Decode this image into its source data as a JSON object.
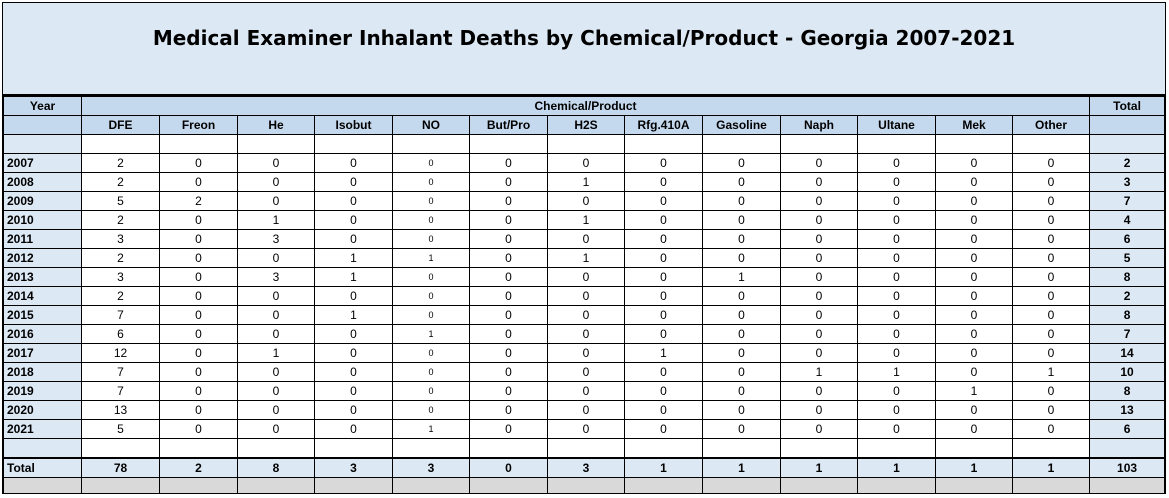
{
  "title": "Medical Examiner Inhalant Deaths by Chemical/Product - Georgia 2007-2021",
  "headers": {
    "year": "Year",
    "group": "Chemical/Product",
    "total": "Total"
  },
  "columns": [
    "DFE",
    "Freon",
    "He",
    "Isobut",
    "NO",
    "But/Pro",
    "H2S",
    "Rfg.410A",
    "Gasoline",
    "Naph",
    "Ultane",
    "Mek",
    "Other"
  ],
  "rows": [
    {
      "year": "2007",
      "values": [
        "2",
        "0",
        "0",
        "0",
        "0",
        "0",
        "0",
        "0",
        "0",
        "0",
        "0",
        "0",
        "0"
      ],
      "total": "2"
    },
    {
      "year": "2008",
      "values": [
        "2",
        "0",
        "0",
        "0",
        "0",
        "0",
        "1",
        "0",
        "0",
        "0",
        "0",
        "0",
        "0"
      ],
      "total": "3"
    },
    {
      "year": "2009",
      "values": [
        "5",
        "2",
        "0",
        "0",
        "0",
        "0",
        "0",
        "0",
        "0",
        "0",
        "0",
        "0",
        "0"
      ],
      "total": "7"
    },
    {
      "year": "2010",
      "values": [
        "2",
        "0",
        "1",
        "0",
        "0",
        "0",
        "1",
        "0",
        "0",
        "0",
        "0",
        "0",
        "0"
      ],
      "total": "4"
    },
    {
      "year": "2011",
      "values": [
        "3",
        "0",
        "3",
        "0",
        "0",
        "0",
        "0",
        "0",
        "0",
        "0",
        "0",
        "0",
        "0"
      ],
      "total": "6"
    },
    {
      "year": "2012",
      "values": [
        "2",
        "0",
        "0",
        "1",
        "1",
        "0",
        "1",
        "0",
        "0",
        "0",
        "0",
        "0",
        "0"
      ],
      "total": "5"
    },
    {
      "year": "2013",
      "values": [
        "3",
        "0",
        "3",
        "1",
        "0",
        "0",
        "0",
        "0",
        "1",
        "0",
        "0",
        "0",
        "0"
      ],
      "total": "8"
    },
    {
      "year": "2014",
      "values": [
        "2",
        "0",
        "0",
        "0",
        "0",
        "0",
        "0",
        "0",
        "0",
        "0",
        "0",
        "0",
        "0"
      ],
      "total": "2"
    },
    {
      "year": "2015",
      "values": [
        "7",
        "0",
        "0",
        "1",
        "0",
        "0",
        "0",
        "0",
        "0",
        "0",
        "0",
        "0",
        "0"
      ],
      "total": "8"
    },
    {
      "year": "2016",
      "values": [
        "6",
        "0",
        "0",
        "0",
        "1",
        "0",
        "0",
        "0",
        "0",
        "0",
        "0",
        "0",
        "0"
      ],
      "total": "7"
    },
    {
      "year": "2017",
      "values": [
        "12",
        "0",
        "1",
        "0",
        "0",
        "0",
        "0",
        "1",
        "0",
        "0",
        "0",
        "0",
        "0"
      ],
      "total": "14"
    },
    {
      "year": "2018",
      "values": [
        "7",
        "0",
        "0",
        "0",
        "0",
        "0",
        "0",
        "0",
        "0",
        "1",
        "1",
        "0",
        "1"
      ],
      "total": "10"
    },
    {
      "year": "2019",
      "values": [
        "7",
        "0",
        "0",
        "0",
        "0",
        "0",
        "0",
        "0",
        "0",
        "0",
        "0",
        "1",
        "0"
      ],
      "total": "8"
    },
    {
      "year": "2020",
      "values": [
        "13",
        "0",
        "0",
        "0",
        "0",
        "0",
        "0",
        "0",
        "0",
        "0",
        "0",
        "0",
        "0"
      ],
      "total": "13"
    },
    {
      "year": "2021",
      "values": [
        "5",
        "0",
        "0",
        "0",
        "1",
        "0",
        "0",
        "0",
        "0",
        "0",
        "0",
        "0",
        "0"
      ],
      "total": "6"
    }
  ],
  "totals": {
    "label": "Total",
    "values": [
      "78",
      "2",
      "8",
      "3",
      "3",
      "0",
      "3",
      "1",
      "1",
      "1",
      "1",
      "1",
      "1"
    ],
    "total": "103"
  }
}
